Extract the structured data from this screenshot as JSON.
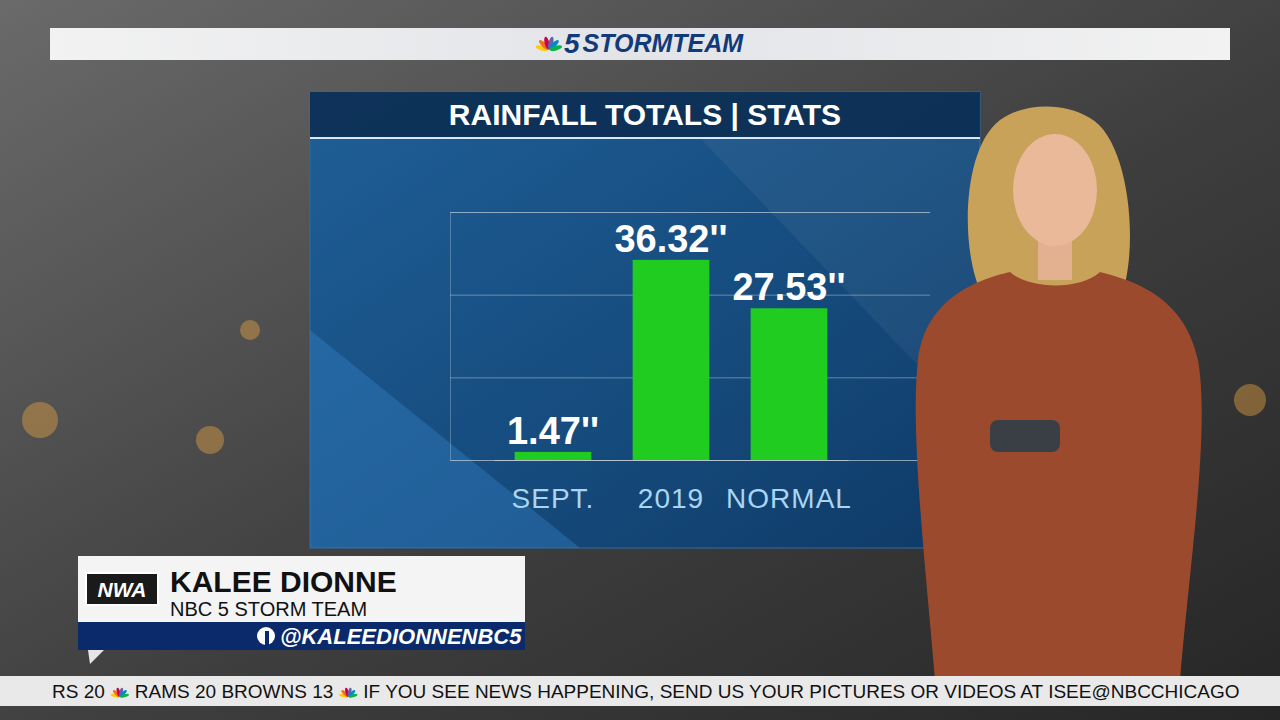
{
  "chart_data": {
    "type": "bar",
    "title": "RAINFALL TOTALS | STATS",
    "categories": [
      "SEPT.",
      "2019",
      "NORMAL"
    ],
    "values": [
      1.47,
      36.32,
      27.53
    ],
    "value_labels": [
      "1.47''",
      "36.32''",
      "27.53''"
    ],
    "color": "#1fcc1f",
    "ylim": [
      0,
      45
    ],
    "yticks": [
      0,
      15,
      30,
      45
    ],
    "grid": true,
    "data_labels": true,
    "tick_labels": "x"
  },
  "header": {
    "number": "5",
    "brand": "STORMTEAM"
  },
  "lower_third": {
    "logo": "NWA",
    "name": "KALEE DIONNE",
    "team": "NBC 5 STORM TEAM",
    "handle": "@KALEEDIONNENBC5"
  },
  "ticker": {
    "items": [
      "RS 20",
      "RAMS 20 BROWNS 13",
      "IF YOU SEE NEWS HAPPENING, SEND US YOUR PICTURES OR VIDEOS AT ISEE@NBCCHICAGO"
    ]
  }
}
